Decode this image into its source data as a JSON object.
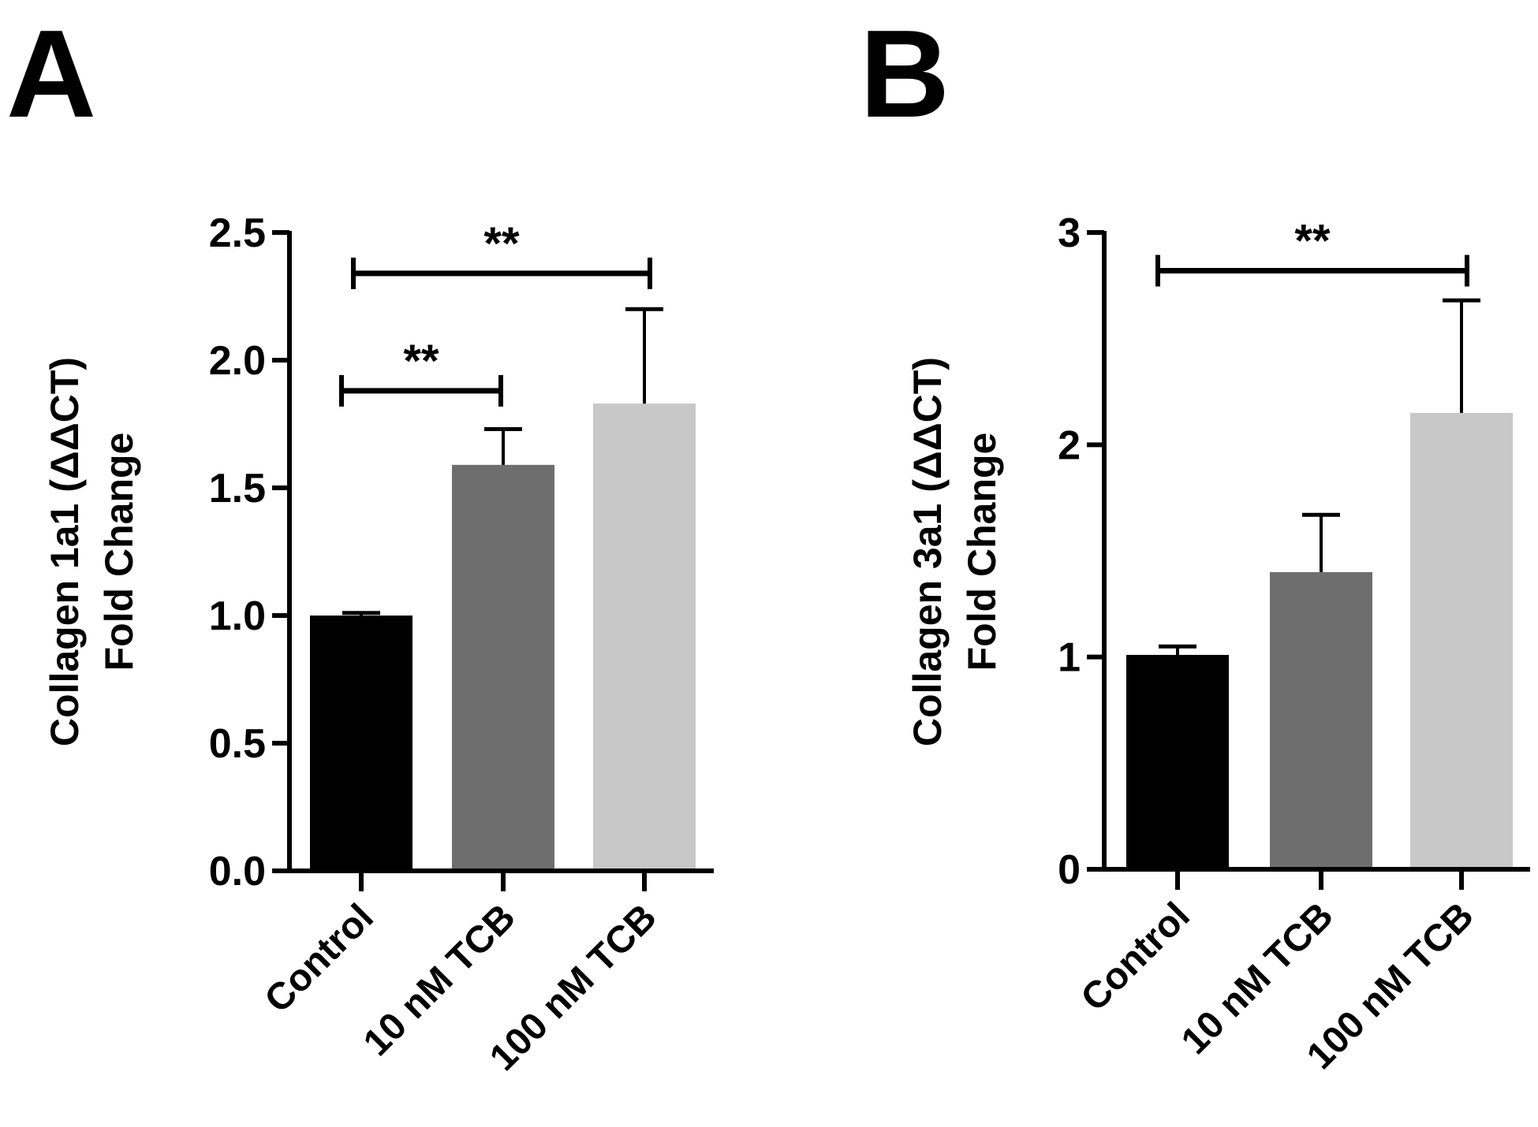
{
  "figure": {
    "background": "#ffffff",
    "axis_color": "#000000"
  },
  "chart_data": [
    {
      "panel_label": "A",
      "type": "bar",
      "categories": [
        "Control",
        "10 nM TCB",
        "100 nM TCB"
      ],
      "values": [
        1.0,
        1.59,
        1.83
      ],
      "errors": [
        0.01,
        0.14,
        0.37
      ],
      "colors": [
        "#000000",
        "#6e6e6e",
        "#c8c8c8"
      ],
      "ylabel_line1": "Collagen 1a1 (ΔΔCT)",
      "ylabel_line2": "Fold Change",
      "xlabel": "",
      "ylim": [
        0,
        2.5
      ],
      "yticks": [
        0.0,
        0.5,
        1.0,
        1.5,
        2.0,
        2.5
      ],
      "yticklabels": [
        "0.0",
        "0.5",
        "1.0",
        "1.5",
        "2.0",
        "2.5"
      ],
      "significance": [
        {
          "from": 0,
          "to": 2,
          "y": 2.34,
          "label": "**"
        },
        {
          "from": 0,
          "to": 1,
          "y": 1.88,
          "label": "**"
        }
      ]
    },
    {
      "panel_label": "B",
      "type": "bar",
      "categories": [
        "Control",
        "10 nM TCB",
        "100 nM TCB"
      ],
      "values": [
        1.01,
        1.4,
        2.15
      ],
      "errors": [
        0.04,
        0.27,
        0.53
      ],
      "colors": [
        "#000000",
        "#6e6e6e",
        "#c8c8c8"
      ],
      "ylabel_line1": "Collagen 3a1 (ΔΔCT)",
      "ylabel_line2": "Fold Change",
      "xlabel": "",
      "ylim": [
        0,
        3
      ],
      "yticks": [
        0,
        1,
        2,
        3
      ],
      "yticklabels": [
        "0",
        "1",
        "2",
        "3"
      ],
      "significance": [
        {
          "from": 0,
          "to": 2,
          "y": 2.82,
          "label": "**"
        }
      ]
    }
  ]
}
